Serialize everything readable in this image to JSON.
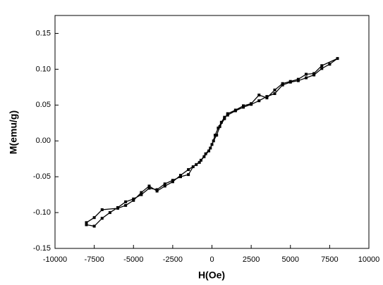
{
  "chart_data": {
    "type": "line",
    "x_label": "H(Oe)",
    "y_label": "M(emu/g)",
    "x": [
      -8000,
      -7500,
      -7000,
      -6500,
      -6000,
      -5500,
      -5000,
      -4500,
      -4000,
      -3500,
      -3000,
      -2500,
      -2000,
      -1500,
      -1200,
      -800,
      -500,
      -200,
      0,
      200,
      400,
      600,
      800,
      1000,
      1500,
      2000,
      2500,
      3000,
      3500,
      4000,
      4500,
      5000,
      5500,
      6000,
      6500,
      7000,
      7500,
      8000,
      7000,
      6500,
      6000,
      5500,
      5000,
      4500,
      4000,
      3500,
      3000,
      2500,
      2000,
      1500,
      1000,
      800,
      500,
      300,
      100,
      -100,
      -400,
      -700,
      -1000,
      -1500,
      -2000,
      -2500,
      -3000,
      -3500,
      -4000,
      -4500,
      -5000,
      -5500,
      -6000,
      -7000,
      -7500,
      -8000
    ],
    "values": [
      -0.117,
      -0.119,
      -0.108,
      -0.1,
      -0.093,
      -0.085,
      -0.081,
      -0.075,
      -0.066,
      -0.068,
      -0.06,
      -0.055,
      -0.05,
      -0.047,
      -0.036,
      -0.03,
      -0.022,
      -0.014,
      -0.005,
      0.008,
      0.018,
      0.026,
      0.033,
      0.036,
      0.042,
      0.047,
      0.051,
      0.056,
      0.062,
      0.066,
      0.078,
      0.082,
      0.084,
      0.088,
      0.092,
      0.101,
      0.107,
      0.115,
      0.105,
      0.094,
      0.093,
      0.086,
      0.083,
      0.08,
      0.071,
      0.06,
      0.064,
      0.052,
      0.049,
      0.043,
      0.038,
      0.031,
      0.02,
      0.008,
      0.0,
      -0.01,
      -0.018,
      -0.027,
      -0.033,
      -0.04,
      -0.048,
      -0.057,
      -0.063,
      -0.07,
      -0.063,
      -0.072,
      -0.083,
      -0.09,
      -0.094,
      -0.096,
      -0.107,
      -0.114
    ],
    "color": "#000000",
    "xlim": [
      -10000,
      10000
    ],
    "xticks": [
      -10000,
      -7500,
      -5000,
      -2500,
      0,
      2500,
      5000,
      7500,
      10000
    ],
    "ylim": [
      -0.15,
      0.175
    ],
    "yticks": [
      -0.15,
      {
        "value": -0.1,
        "label": "-0.10"
      },
      -0.05,
      {
        "value": 0,
        "label": "0.00"
      },
      0.05,
      {
        "value": 0.1,
        "label": "0.10"
      },
      0.15
    ],
    "grid": false
  }
}
